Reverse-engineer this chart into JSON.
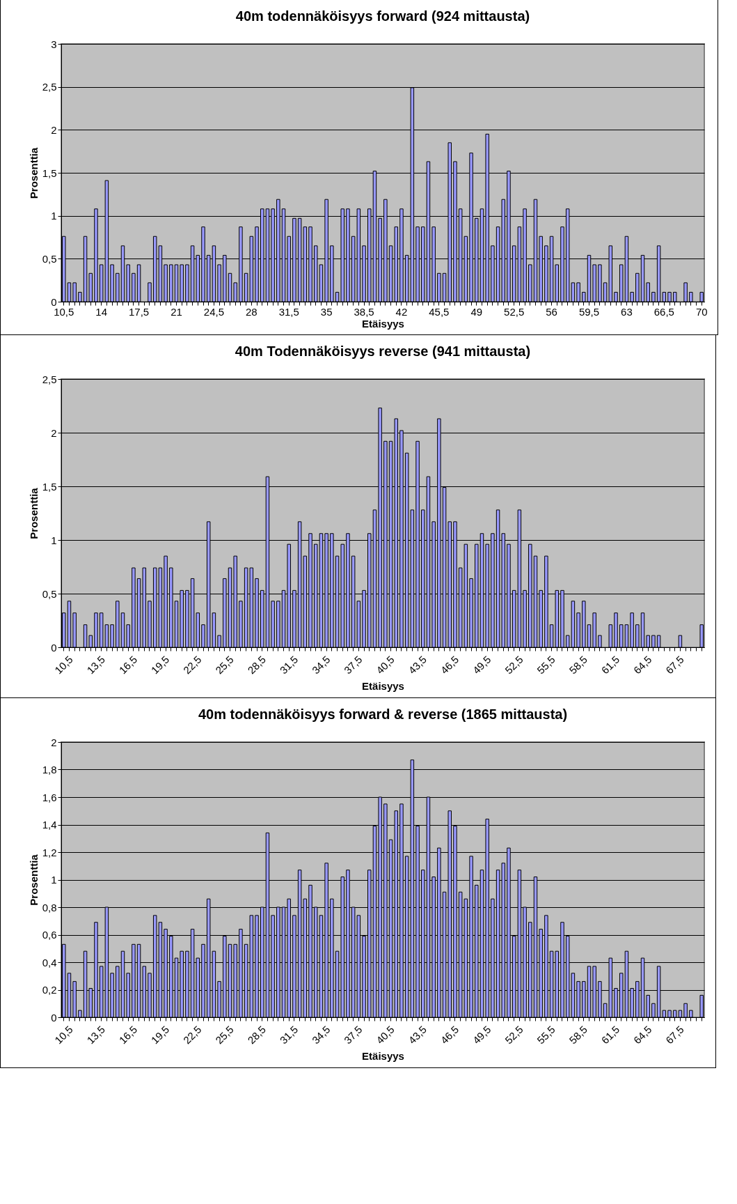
{
  "chart_data": [
    {
      "type": "bar",
      "title": "40m todennäköisyys forward (924 mittausta)",
      "xlabel": "Etäisyys",
      "ylabel": "Prosenttia",
      "color": "#9999ff",
      "grid": "y",
      "categories": [
        "10,5",
        null,
        null,
        null,
        null,
        null,
        null,
        "14",
        null,
        null,
        null,
        null,
        null,
        null,
        "17,5",
        null,
        null,
        null,
        null,
        null,
        null,
        "21",
        null,
        null,
        null,
        null,
        null,
        null,
        "24,5",
        null,
        null,
        null,
        null,
        null,
        null,
        "28",
        null,
        null,
        null,
        null,
        null,
        null,
        "31,5",
        null,
        null,
        null,
        null,
        null,
        null,
        "35",
        null,
        null,
        null,
        null,
        null,
        null,
        "38,5",
        null,
        null,
        null,
        null,
        null,
        null,
        "42",
        null,
        null,
        null,
        null,
        null,
        null,
        "45,5",
        null,
        null,
        null,
        null,
        null,
        null,
        "49",
        null,
        null,
        null,
        null,
        null,
        null,
        "52,5",
        null,
        null,
        null,
        null,
        null,
        null,
        "56",
        null,
        null,
        null,
        null,
        null,
        null,
        "59,5",
        null,
        null,
        null,
        null,
        null,
        null,
        "63",
        null,
        null,
        null,
        null,
        null,
        null,
        "66,5",
        null,
        null,
        null,
        null,
        null,
        null,
        "70"
      ],
      "values": [
        0.76,
        0.22,
        0.22,
        0.11,
        0.76,
        0.33,
        1.08,
        0.43,
        1.41,
        0.43,
        0.33,
        0.65,
        0.43,
        0.33,
        0.43,
        0,
        0.22,
        0.76,
        0.65,
        0.43,
        0.43,
        0.43,
        0.43,
        0.43,
        0.65,
        0.54,
        0.87,
        0.54,
        0.65,
        0.43,
        0.54,
        0.33,
        0.22,
        0.87,
        0.33,
        0.76,
        0.87,
        1.08,
        1.08,
        1.08,
        1.19,
        1.08,
        0.76,
        0.97,
        0.97,
        0.87,
        0.87,
        0.65,
        0.43,
        1.19,
        0.65,
        0.11,
        1.08,
        1.08,
        0.76,
        1.08,
        0.65,
        1.08,
        1.52,
        0.97,
        1.19,
        0.65,
        0.87,
        1.08,
        0.54,
        2.49,
        0.87,
        0.87,
        1.63,
        0.87,
        0.33,
        0.33,
        1.85,
        1.63,
        1.08,
        0.76,
        1.73,
        0.97,
        1.08,
        1.95,
        0.65,
        0.87,
        1.19,
        1.52,
        0.65,
        0.87,
        1.08,
        0.43,
        1.19,
        0.76,
        0.65,
        0.76,
        0.43,
        0.87,
        1.08,
        0.22,
        0.22,
        0.11,
        0.54,
        0.43,
        0.43,
        0.22,
        0.65,
        0.11,
        0.43,
        0.76,
        0.11,
        0.33,
        0.54,
        0.22,
        0.11,
        0.65,
        0.11,
        0.11,
        0.11,
        0,
        0.22,
        0.11,
        0,
        0.11
      ],
      "ylim": [
        0,
        3
      ],
      "yticks": [
        0,
        {
          "value": 0.5,
          "label": "0,5"
        },
        1,
        {
          "value": 1.5,
          "label": "1,5"
        },
        2,
        {
          "value": 2.5,
          "label": "2,5"
        },
        3
      ]
    },
    {
      "type": "bar",
      "title": "40m Todennäköisyys reverse (941 mittausta)",
      "xlabel": "Etäisyys",
      "ylabel": "Prosenttia",
      "color": "#9999ff",
      "grid": "y",
      "categories": [
        "10,5",
        null,
        null,
        null,
        null,
        null,
        "13,5",
        null,
        null,
        null,
        null,
        null,
        "16,5",
        null,
        null,
        null,
        null,
        null,
        "19,5",
        null,
        null,
        null,
        null,
        null,
        "22,5",
        null,
        null,
        null,
        null,
        null,
        "25,5",
        null,
        null,
        null,
        null,
        null,
        "28,5",
        null,
        null,
        null,
        null,
        null,
        "31,5",
        null,
        null,
        null,
        null,
        null,
        "34,5",
        null,
        null,
        null,
        null,
        null,
        "37,5",
        null,
        null,
        null,
        null,
        null,
        "40,5",
        null,
        null,
        null,
        null,
        null,
        "43,5",
        null,
        null,
        null,
        null,
        null,
        "46,5",
        null,
        null,
        null,
        null,
        null,
        "49,5",
        null,
        null,
        null,
        null,
        null,
        "52,5",
        null,
        null,
        null,
        null,
        null,
        "55,5",
        null,
        null,
        null,
        null,
        null,
        "58,5",
        null,
        null,
        null,
        null,
        null,
        "61,5",
        null,
        null,
        null,
        null,
        null,
        "64,5",
        null,
        null,
        null,
        null,
        null,
        "67,5",
        null,
        null,
        null,
        null,
        null
      ],
      "values": [
        0.32,
        0.43,
        0.32,
        0,
        0.21,
        0.11,
        0.32,
        0.32,
        0.21,
        0.21,
        0.43,
        0.32,
        0.21,
        0.74,
        0.64,
        0.74,
        0.43,
        0.74,
        0.74,
        0.85,
        0.74,
        0.43,
        0.53,
        0.53,
        0.64,
        0.32,
        0.21,
        1.17,
        0.32,
        0.11,
        0.64,
        0.74,
        0.85,
        0.43,
        0.74,
        0.74,
        0.64,
        0.53,
        1.59,
        0.43,
        0.43,
        0.53,
        0.96,
        0.53,
        1.17,
        0.85,
        1.06,
        0.96,
        1.06,
        1.06,
        1.06,
        0.85,
        0.96,
        1.06,
        0.85,
        0.43,
        0.53,
        1.06,
        1.28,
        2.23,
        1.92,
        1.92,
        2.13,
        2.02,
        1.81,
        1.28,
        1.92,
        1.28,
        1.59,
        1.17,
        2.13,
        1.49,
        1.17,
        1.17,
        0.74,
        0.96,
        0.64,
        0.96,
        1.06,
        0.96,
        1.06,
        1.28,
        1.06,
        0.96,
        0.53,
        1.28,
        0.53,
        0.96,
        0.85,
        0.53,
        0.85,
        0.21,
        0.53,
        0.53,
        0.11,
        0.43,
        0.32,
        0.43,
        0.21,
        0.32,
        0.11,
        0,
        0.21,
        0.32,
        0.21,
        0.21,
        0.32,
        0.21,
        0.32,
        0.11,
        0.11,
        0.11,
        0,
        0,
        0,
        0.11,
        0,
        0,
        0,
        0.21
      ],
      "ylim": [
        0,
        2.5
      ],
      "yticks": [
        0,
        {
          "value": 0.5,
          "label": "0,5"
        },
        1,
        {
          "value": 1.5,
          "label": "1,5"
        },
        2,
        {
          "value": 2.5,
          "label": "2,5"
        }
      ]
    },
    {
      "type": "bar",
      "title": "40m todennäköisyys forward & reverse (1865 mittausta)",
      "xlabel": "Etäisyys",
      "ylabel": "Prosenttia",
      "color": "#9999ff",
      "grid": "y",
      "categories": [
        "10,5",
        null,
        null,
        null,
        null,
        null,
        "13,5",
        null,
        null,
        null,
        null,
        null,
        "16,5",
        null,
        null,
        null,
        null,
        null,
        "19,5",
        null,
        null,
        null,
        null,
        null,
        "22,5",
        null,
        null,
        null,
        null,
        null,
        "25,5",
        null,
        null,
        null,
        null,
        null,
        "28,5",
        null,
        null,
        null,
        null,
        null,
        "31,5",
        null,
        null,
        null,
        null,
        null,
        "34,5",
        null,
        null,
        null,
        null,
        null,
        "37,5",
        null,
        null,
        null,
        null,
        null,
        "40,5",
        null,
        null,
        null,
        null,
        null,
        "43,5",
        null,
        null,
        null,
        null,
        null,
        "46,5",
        null,
        null,
        null,
        null,
        null,
        "49,5",
        null,
        null,
        null,
        null,
        null,
        "52,5",
        null,
        null,
        null,
        null,
        null,
        "55,5",
        null,
        null,
        null,
        null,
        null,
        "58,5",
        null,
        null,
        null,
        null,
        null,
        "61,5",
        null,
        null,
        null,
        null,
        null,
        "64,5",
        null,
        null,
        null,
        null,
        null,
        "67,5",
        null,
        null,
        null,
        null,
        null
      ],
      "values": [
        0.53,
        0.32,
        0.26,
        0.05,
        0.48,
        0.21,
        0.69,
        0.37,
        0.8,
        0.32,
        0.37,
        0.48,
        0.32,
        0.53,
        0.53,
        0.37,
        0.32,
        0.74,
        0.69,
        0.64,
        0.59,
        0.43,
        0.48,
        0.48,
        0.64,
        0.43,
        0.53,
        0.86,
        0.48,
        0.26,
        0.59,
        0.53,
        0.53,
        0.64,
        0.53,
        0.74,
        0.74,
        0.8,
        1.34,
        0.74,
        0.8,
        0.8,
        0.86,
        0.74,
        1.07,
        0.86,
        0.96,
        0.8,
        0.74,
        1.12,
        0.86,
        0.48,
        1.02,
        1.07,
        0.8,
        0.74,
        0.59,
        1.07,
        1.39,
        1.6,
        1.55,
        1.29,
        1.5,
        1.55,
        1.17,
        1.87,
        1.39,
        1.07,
        1.6,
        1.02,
        1.23,
        0.91,
        1.5,
        1.39,
        0.91,
        0.86,
        1.17,
        0.96,
        1.07,
        1.44,
        0.86,
        1.07,
        1.12,
        1.23,
        0.59,
        1.07,
        0.8,
        0.69,
        1.02,
        0.64,
        0.74,
        0.48,
        0.48,
        0.69,
        0.59,
        0.32,
        0.26,
        0.26,
        0.37,
        0.37,
        0.26,
        0.1,
        0.43,
        0.21,
        0.32,
        0.48,
        0.21,
        0.26,
        0.43,
        0.16,
        0.1,
        0.37,
        0.05,
        0.05,
        0.05,
        0.05,
        0.1,
        0.05,
        0,
        0.16
      ],
      "ylim": [
        0,
        2
      ],
      "yticks": [
        0,
        {
          "value": 0.2,
          "label": "0,2"
        },
        {
          "value": 0.4,
          "label": "0,4"
        },
        {
          "value": 0.6,
          "label": "0,6"
        },
        {
          "value": 0.8,
          "label": "0,8"
        },
        1,
        {
          "value": 1.2,
          "label": "1,2"
        },
        {
          "value": 1.4,
          "label": "1,4"
        },
        {
          "value": 1.6,
          "label": "1,6"
        },
        {
          "value": 1.8,
          "label": "1,8"
        },
        2
      ]
    }
  ]
}
